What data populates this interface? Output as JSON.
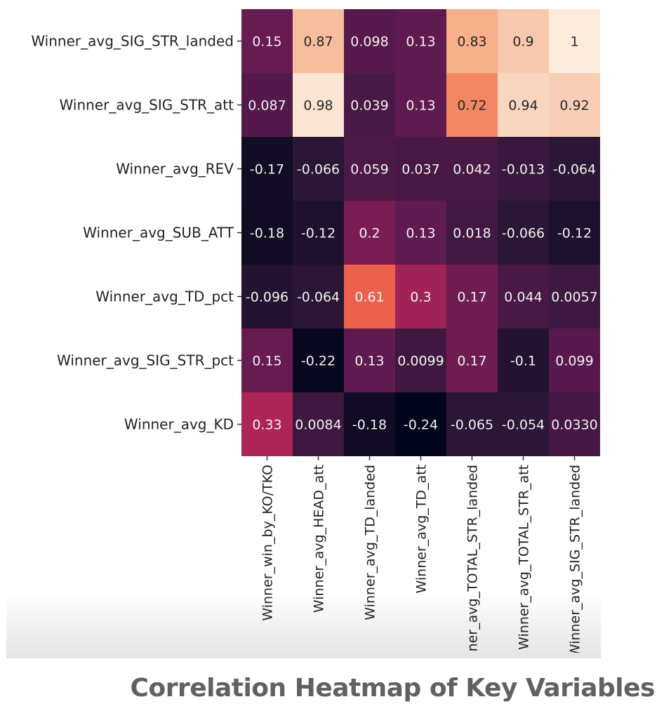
{
  "caption": "Correlation Heatmap of Key Variables",
  "chart_data": {
    "type": "heatmap",
    "colormap": "rocket",
    "vmin": -0.24,
    "vmax": 1,
    "rows": [
      "Winner_avg_SIG_STR_landed",
      "Winner_avg_SIG_STR_att",
      "Winner_avg_REV",
      "Winner_avg_SUB_ATT",
      "Winner_avg_TD_pct",
      "Winner_avg_SIG_STR_pct",
      "Winner_avg_KD"
    ],
    "columns": [
      "Winner_win_by_KO/TKO",
      "Winner_avg_HEAD_att",
      "Winner_avg_TD_landed",
      "Winner_avg_TD_att",
      "Winner_avg_TOTAL_STR_landed",
      "Winner_avg_TOTAL_STR_att",
      "Winner_avg_SIG_STR_landed"
    ],
    "values": [
      [
        0.15,
        0.87,
        0.098,
        0.13,
        0.83,
        0.9,
        1
      ],
      [
        0.087,
        0.98,
        0.039,
        0.13,
        0.72,
        0.94,
        0.92
      ],
      [
        -0.17,
        -0.066,
        0.059,
        0.037,
        0.042,
        -0.013,
        -0.064
      ],
      [
        -0.18,
        -0.12,
        0.2,
        0.13,
        0.018,
        -0.066,
        -0.12
      ],
      [
        -0.096,
        -0.064,
        0.61,
        0.3,
        0.17,
        0.044,
        0.0057
      ],
      [
        0.15,
        -0.22,
        0.13,
        0.0099,
        0.17,
        -0.1,
        0.099
      ],
      [
        0.33,
        0.0084,
        -0.18,
        -0.24,
        -0.065,
        -0.054,
        0.033
      ]
    ],
    "labels": [
      [
        "0.15",
        "0.87",
        "0.098",
        "0.13",
        "0.83",
        "0.9",
        "1"
      ],
      [
        "0.087",
        "0.98",
        "0.039",
        "0.13",
        "0.72",
        "0.94",
        "0.92"
      ],
      [
        "-0.17",
        "-0.066",
        "0.059",
        "0.037",
        "0.042",
        "-0.013",
        "-0.064"
      ],
      [
        "-0.18",
        "-0.12",
        "0.2",
        "0.13",
        "0.018",
        "-0.066",
        "-0.12"
      ],
      [
        "-0.096",
        "-0.064",
        "0.61",
        "0.3",
        "0.17",
        "0.044",
        "0.0057"
      ],
      [
        "0.15",
        "-0.22",
        "0.13",
        "0.0099",
        "0.17",
        "-0.1",
        "0.099"
      ],
      [
        "0.33",
        "0.0084",
        "-0.18",
        "-0.24",
        "-0.065",
        "-0.054",
        "0.0330"
      ]
    ]
  }
}
